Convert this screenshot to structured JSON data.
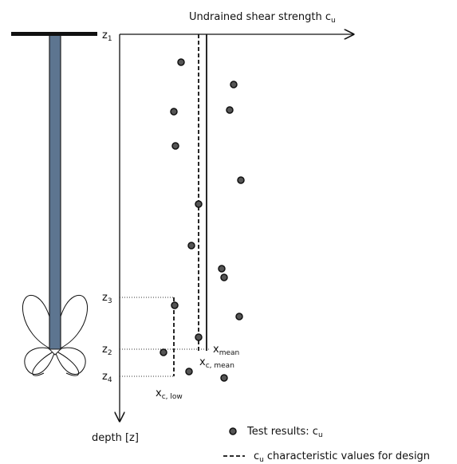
{
  "axis": {
    "x_label": {
      "text": "Undrained shear strength c",
      "sub": "u"
    },
    "y_label": "depth [z]"
  },
  "depths": [
    {
      "text": "z",
      "sub": "1"
    },
    {
      "text": "z",
      "sub": "3"
    },
    {
      "text": "z",
      "sub": "2"
    },
    {
      "text": "z",
      "sub": "4"
    }
  ],
  "markers": [
    {
      "text": "x",
      "sub": "mean"
    },
    {
      "text": "x",
      "sub": "c, mean"
    },
    {
      "text": "x",
      "sub": "c, low"
    }
  ],
  "legend": [
    {
      "label": "Test results: c",
      "sub": "u"
    },
    {
      "prefix": "c",
      "sub": "u",
      "label": "characteristic values for design"
    }
  ]
}
